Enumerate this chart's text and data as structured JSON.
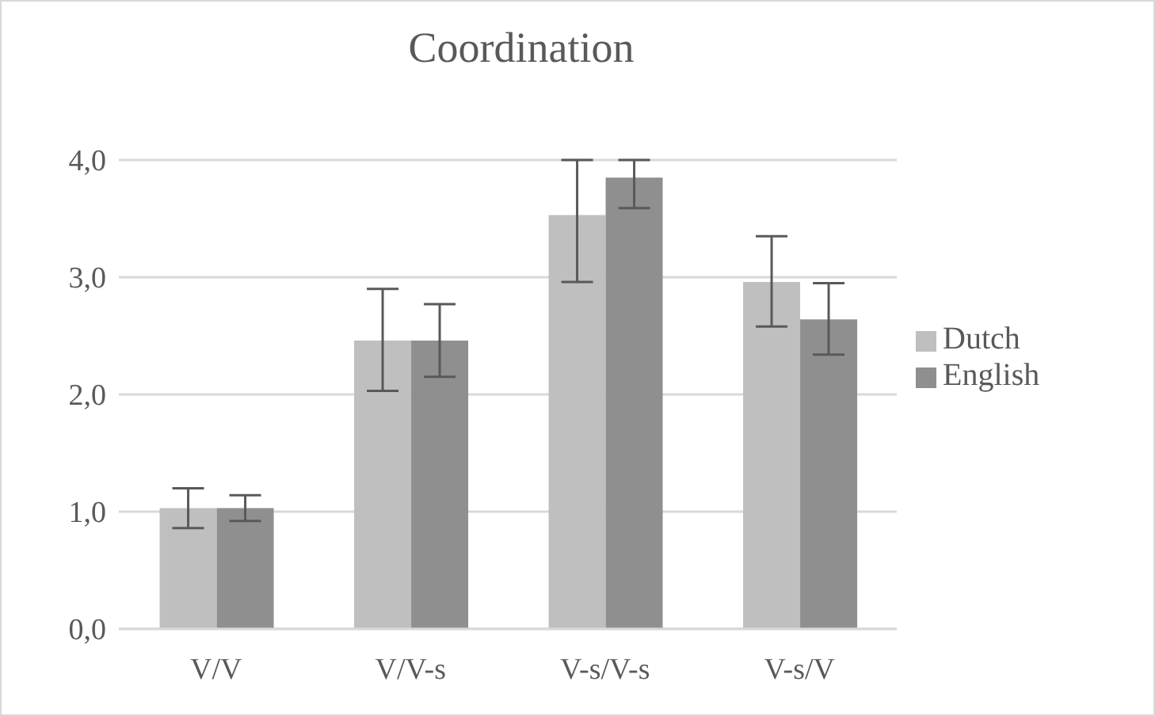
{
  "chart_data": {
    "type": "bar",
    "title": "Coordination",
    "categories": [
      "V/V",
      "V/V-s",
      "V-s/V-s",
      "V-s/V"
    ],
    "series": [
      {
        "name": "Dutch",
        "color": "#bfbfbf",
        "values": [
          1.03,
          2.46,
          3.53,
          2.96
        ],
        "errors": [
          [
            0.86,
            1.2
          ],
          [
            2.03,
            2.9
          ],
          [
            2.96,
            4.0
          ],
          [
            2.58,
            3.35
          ]
        ]
      },
      {
        "name": "English",
        "color": "#8f8f8f",
        "values": [
          1.03,
          2.46,
          3.85,
          2.64
        ],
        "errors": [
          [
            0.92,
            1.14
          ],
          [
            2.15,
            2.77
          ],
          [
            3.59,
            4.0
          ],
          [
            2.34,
            2.95
          ]
        ]
      }
    ],
    "ylim": [
      0,
      4
    ],
    "yticks": [
      {
        "value": 0,
        "label": "0,0"
      },
      {
        "value": 1,
        "label": "1,0"
      },
      {
        "value": 2,
        "label": "2,0"
      },
      {
        "value": 3,
        "label": "3,0"
      },
      {
        "value": 4,
        "label": "4,0"
      }
    ],
    "grid": "y",
    "legend": "right"
  }
}
